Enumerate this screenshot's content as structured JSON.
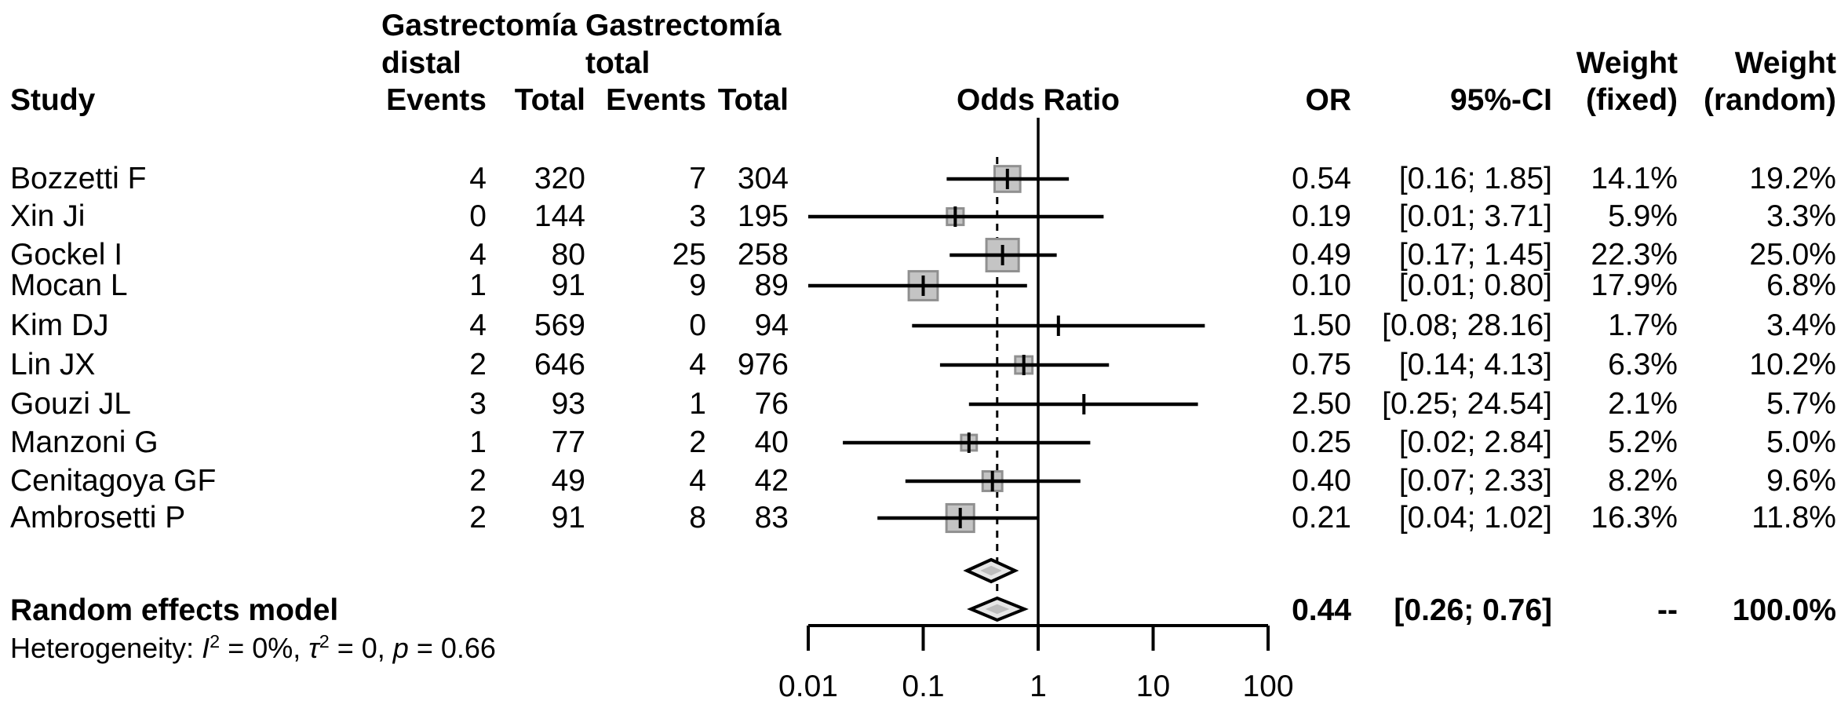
{
  "header": {
    "study": "Study",
    "group1_line1": "Gastrectomía",
    "group1_line2": "distal",
    "group2_line1": "Gastrectomía",
    "group2_line2": "total",
    "events1": "Events",
    "total1": "Total",
    "events2": "Events",
    "total2": "Total",
    "odds_ratio": "Odds Ratio",
    "or": "OR",
    "ci": "95%-CI",
    "weight1": "Weight",
    "weight1_sub": "(fixed)",
    "weight2": "Weight",
    "weight2_sub": "(random)"
  },
  "chart_data": {
    "type": "forest",
    "x_axis": {
      "scale": "log10",
      "ticks": [
        0.01,
        0.1,
        1,
        10,
        100
      ],
      "tick_labels": [
        "0.01",
        "0.1",
        "1",
        "10",
        "100"
      ],
      "reference_line": 1,
      "pooled_dashed_line": 0.44
    },
    "studies": [
      {
        "study": "Bozzetti F",
        "events_distal": "4",
        "total_distal": "320",
        "events_total": "7",
        "total_total": "304",
        "or": 0.54,
        "lower": 0.16,
        "upper": 1.85,
        "or_text": "0.54",
        "ci_text": "[0.16; 1.85]",
        "weight_fixed": 14.1,
        "weight_fixed_text": "14.1%",
        "weight_random": 19.2,
        "weight_random_text": "19.2%"
      },
      {
        "study": "Xin Ji",
        "events_distal": "0",
        "total_distal": "144",
        "events_total": "3",
        "total_total": "195",
        "or": 0.19,
        "lower": 0.01,
        "upper": 3.71,
        "or_text": "0.19",
        "ci_text": "[0.01; 3.71]",
        "weight_fixed": 5.9,
        "weight_fixed_text": "5.9%",
        "weight_random": 3.3,
        "weight_random_text": "3.3%"
      },
      {
        "study": "Gockel I",
        "events_distal": "4",
        "total_distal": "80",
        "events_total": "25",
        "total_total": "258",
        "or": 0.49,
        "lower": 0.17,
        "upper": 1.45,
        "or_text": "0.49",
        "ci_text": "[0.17; 1.45]",
        "weight_fixed": 22.3,
        "weight_fixed_text": "22.3%",
        "weight_random": 25.0,
        "weight_random_text": "25.0%"
      },
      {
        "study": "Mocan L",
        "events_distal": "1",
        "total_distal": "91",
        "events_total": "9",
        "total_total": "89",
        "or": 0.1,
        "lower": 0.01,
        "upper": 0.8,
        "or_text": "0.10",
        "ci_text": "[0.01; 0.80]",
        "weight_fixed": 17.9,
        "weight_fixed_text": "17.9%",
        "weight_random": 6.8,
        "weight_random_text": "6.8%"
      },
      {
        "study": "Kim DJ",
        "events_distal": "4",
        "total_distal": "569",
        "events_total": "0",
        "total_total": "94",
        "or": 1.5,
        "lower": 0.08,
        "upper": 28.16,
        "or_text": "1.50",
        "ci_text": "[0.08; 28.16]",
        "weight_fixed": 1.7,
        "weight_fixed_text": "1.7%",
        "weight_random": 3.4,
        "weight_random_text": "3.4%"
      },
      {
        "study": "Lin JX",
        "events_distal": "2",
        "total_distal": "646",
        "events_total": "4",
        "total_total": "976",
        "or": 0.75,
        "lower": 0.14,
        "upper": 4.13,
        "or_text": "0.75",
        "ci_text": "[0.14; 4.13]",
        "weight_fixed": 6.3,
        "weight_fixed_text": "6.3%",
        "weight_random": 10.2,
        "weight_random_text": "10.2%"
      },
      {
        "study": "Gouzi JL",
        "events_distal": "3",
        "total_distal": "93",
        "events_total": "1",
        "total_total": "76",
        "or": 2.5,
        "lower": 0.25,
        "upper": 24.54,
        "or_text": "2.50",
        "ci_text": "[0.25; 24.54]",
        "weight_fixed": 2.1,
        "weight_fixed_text": "2.1%",
        "weight_random": 5.7,
        "weight_random_text": "5.7%"
      },
      {
        "study": "Manzoni G",
        "events_distal": "1",
        "total_distal": "77",
        "events_total": "2",
        "total_total": "40",
        "or": 0.25,
        "lower": 0.02,
        "upper": 2.84,
        "or_text": "0.25",
        "ci_text": "[0.02; 2.84]",
        "weight_fixed": 5.2,
        "weight_fixed_text": "5.2%",
        "weight_random": 5.0,
        "weight_random_text": "5.0%"
      },
      {
        "study": "Cenitagoya GF",
        "events_distal": "2",
        "total_distal": "49",
        "events_total": "4",
        "total_total": "42",
        "or": 0.4,
        "lower": 0.07,
        "upper": 2.33,
        "or_text": "0.40",
        "ci_text": "[0.07; 2.33]",
        "weight_fixed": 8.2,
        "weight_fixed_text": "8.2%",
        "weight_random": 9.6,
        "weight_random_text": "9.6%"
      },
      {
        "study": "Ambrosetti P",
        "events_distal": "2",
        "total_distal": "91",
        "events_total": "8",
        "total_total": "83",
        "or": 0.21,
        "lower": 0.04,
        "upper": 1.02,
        "or_text": "0.21",
        "ci_text": "[0.04; 1.02]",
        "weight_fixed": 16.3,
        "weight_fixed_text": "16.3%",
        "weight_random": 11.8,
        "weight_random_text": "11.8%"
      }
    ],
    "fixed_diamond": {
      "label": "",
      "estimate": 0.39,
      "lower": 0.24,
      "upper": 0.63
    },
    "random_diamond": {
      "label": "Random effects model",
      "estimate": 0.44,
      "lower": 0.26,
      "upper": 0.76
    }
  },
  "summary": {
    "random_label": "Random effects model",
    "or_text": "0.44",
    "ci_text": "[0.26; 0.76]",
    "weight_fixed_text": "--",
    "weight_random_text": "100.0%",
    "heterogeneity": {
      "prefix": "Heterogeneity: ",
      "i": "I",
      "i_sup": "2",
      "i_rest": " = 0%, ",
      "tau": "τ",
      "tau_sup": "2",
      "tau_rest": " = 0, ",
      "p": "p",
      "p_rest": " = 0.66"
    }
  },
  "colors": {
    "square_fill": "#c4c4c4",
    "square_border": "#909090",
    "diamond_fill": "#e6e6e6",
    "diamond_inner": "#bdbdbd",
    "line": "#000000"
  }
}
